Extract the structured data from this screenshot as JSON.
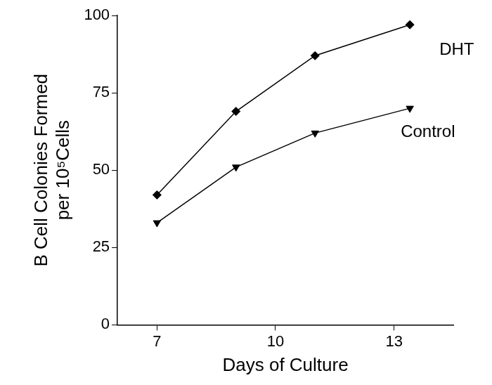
{
  "chart_data": {
    "type": "line",
    "x_label": "Days of Culture",
    "y_label": [
      "B Cell Colonies Formed",
      "per 10⁵Cells"
    ],
    "x": [
      7,
      9,
      11,
      13.4
    ],
    "series": [
      {
        "name": "DHT",
        "color": "#000000",
        "marker": "diamond",
        "values": [
          42,
          69,
          87,
          97
        ]
      },
      {
        "name": "Control",
        "color": "#000000",
        "marker": "triangle-down",
        "values": [
          33,
          51,
          62,
          70
        ]
      }
    ],
    "xlim": [
      6,
      14.5
    ],
    "xticks": [
      7,
      10,
      13
    ],
    "ylim": [
      0,
      100
    ],
    "yticks": [
      0,
      25,
      50,
      75,
      100
    ],
    "grid": false
  }
}
